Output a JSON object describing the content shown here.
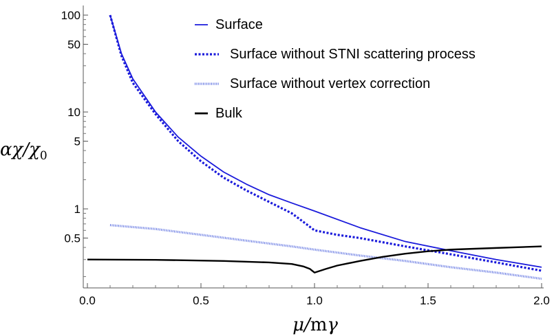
{
  "chart_data": {
    "type": "line",
    "xlabel": "μ/mγ",
    "ylabel": "αχ/χ0",
    "ylabel_parts": {
      "alpha_chi": "αχ",
      "slash": "/",
      "chi": "χ",
      "sub": "0"
    },
    "xlabel_parts": {
      "mu": "μ",
      "slash": "/",
      "m": "m",
      "gamma": "γ"
    },
    "x_scale": "linear",
    "y_scale": "log",
    "xlim": [
      0,
      2.0
    ],
    "ylim": [
      0.15,
      120
    ],
    "x_ticks": [
      {
        "value": 0.0,
        "label": "0.0"
      },
      {
        "value": 0.5,
        "label": "0.5"
      },
      {
        "value": 1.0,
        "label": "1.0"
      },
      {
        "value": 1.5,
        "label": "1.5"
      },
      {
        "value": 2.0,
        "label": "2.0"
      }
    ],
    "y_ticks": [
      {
        "value": 0.5,
        "label": "0.5"
      },
      {
        "value": 1,
        "label": "1"
      },
      {
        "value": 5,
        "label": "5"
      },
      {
        "value": 10,
        "label": "10"
      },
      {
        "value": 50,
        "label": "50"
      },
      {
        "value": 100,
        "label": "100"
      }
    ],
    "legend_position": "top-right",
    "series": [
      {
        "name": "Surface",
        "style": "solid",
        "color": "#1a1adb",
        "x": [
          0.1,
          0.15,
          0.2,
          0.3,
          0.4,
          0.5,
          0.6,
          0.7,
          0.8,
          0.9,
          1.0,
          1.2,
          1.4,
          1.6,
          1.8,
          2.0
        ],
        "y": [
          100,
          40,
          22,
          10,
          5.5,
          3.5,
          2.4,
          1.8,
          1.4,
          1.15,
          0.95,
          0.64,
          0.46,
          0.37,
          0.3,
          0.25
        ]
      },
      {
        "name": "Surface without STNI scattering process",
        "style": "dashed-thick",
        "color": "#1a1adb",
        "x": [
          0.1,
          0.15,
          0.2,
          0.3,
          0.4,
          0.5,
          0.6,
          0.7,
          0.8,
          0.9,
          0.97,
          1.0,
          1.1,
          1.2,
          1.4,
          1.6,
          1.8,
          2.0
        ],
        "y": [
          100,
          38,
          20,
          9.5,
          5.0,
          3.1,
          2.1,
          1.55,
          1.18,
          0.9,
          0.68,
          0.6,
          0.54,
          0.5,
          0.41,
          0.34,
          0.28,
          0.23
        ]
      },
      {
        "name": "Surface without vertex correction",
        "style": "dotted",
        "color": "#5a6ee0",
        "x": [
          0.1,
          0.3,
          0.5,
          0.7,
          0.9,
          1.0,
          1.2,
          1.4,
          1.6,
          1.8,
          2.0
        ],
        "y": [
          0.68,
          0.62,
          0.54,
          0.47,
          0.41,
          0.38,
          0.33,
          0.29,
          0.25,
          0.22,
          0.19
        ]
      },
      {
        "name": "Bulk",
        "style": "solid",
        "color": "#000000",
        "x": [
          0.0,
          0.3,
          0.6,
          0.8,
          0.9,
          0.95,
          0.98,
          1.0,
          1.05,
          1.1,
          1.2,
          1.3,
          1.4,
          1.5,
          1.6,
          1.8,
          2.0
        ],
        "y": [
          0.3,
          0.298,
          0.29,
          0.28,
          0.27,
          0.255,
          0.24,
          0.22,
          0.24,
          0.26,
          0.29,
          0.32,
          0.345,
          0.365,
          0.38,
          0.395,
          0.41
        ]
      }
    ]
  }
}
